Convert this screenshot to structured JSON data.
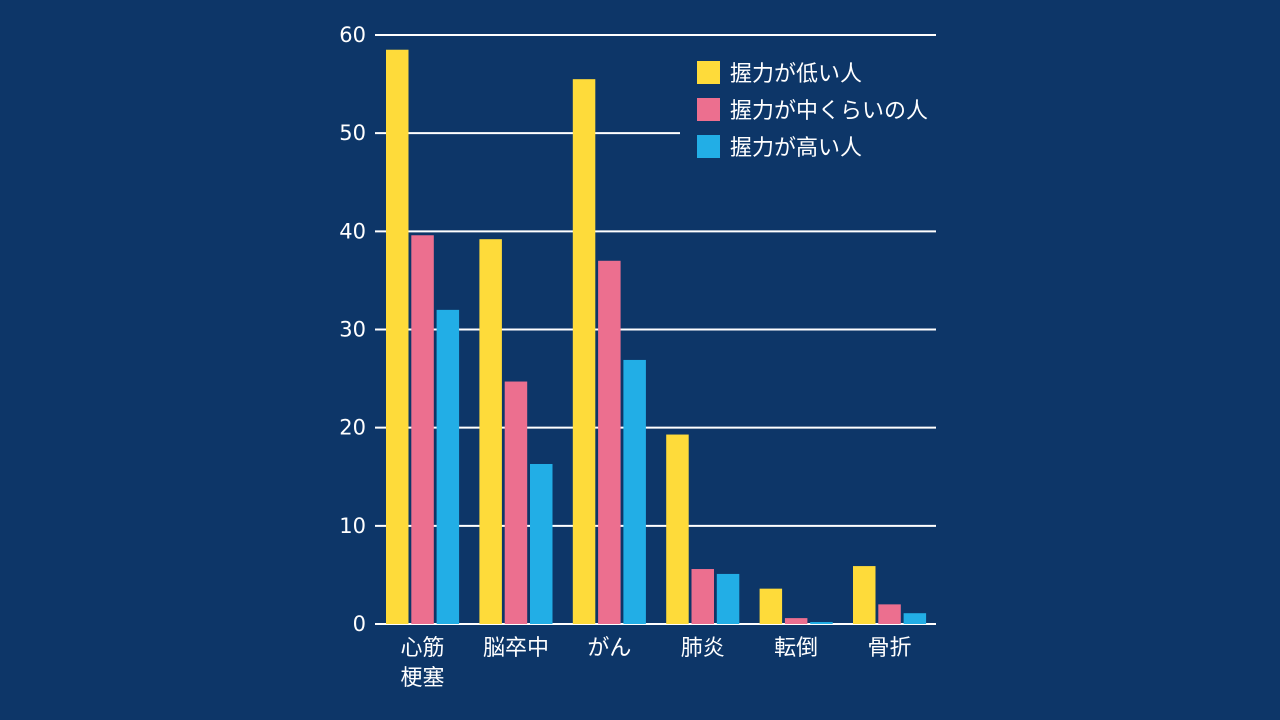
{
  "chart_data": {
    "type": "bar",
    "categories": [
      [
        "心筋",
        "梗塞"
      ],
      [
        "脳卒中"
      ],
      [
        "がん"
      ],
      [
        "肺炎"
      ],
      [
        "転倒"
      ],
      [
        "骨折"
      ]
    ],
    "series": [
      {
        "name": "握力が低い人",
        "color": "#fedb3a",
        "values": [
          58.5,
          39.2,
          55.5,
          19.3,
          3.6,
          5.9
        ]
      },
      {
        "name": "握力が中くらいの人",
        "color": "#ec6f8f",
        "values": [
          39.6,
          24.7,
          37.0,
          5.6,
          0.6,
          2.0
        ]
      },
      {
        "name": "握力が高い人",
        "color": "#22aee6",
        "values": [
          32.0,
          16.3,
          26.9,
          5.1,
          0.2,
          1.1
        ]
      }
    ],
    "yticks": [
      "0",
      "10",
      "20",
      "30",
      "40",
      "50",
      "60"
    ],
    "ylim": [
      0,
      60
    ],
    "grid": true,
    "legend_position": "top-right",
    "colors": {
      "background": "#0d3668",
      "grid": "#ffffff",
      "text": "#ffffff"
    }
  }
}
